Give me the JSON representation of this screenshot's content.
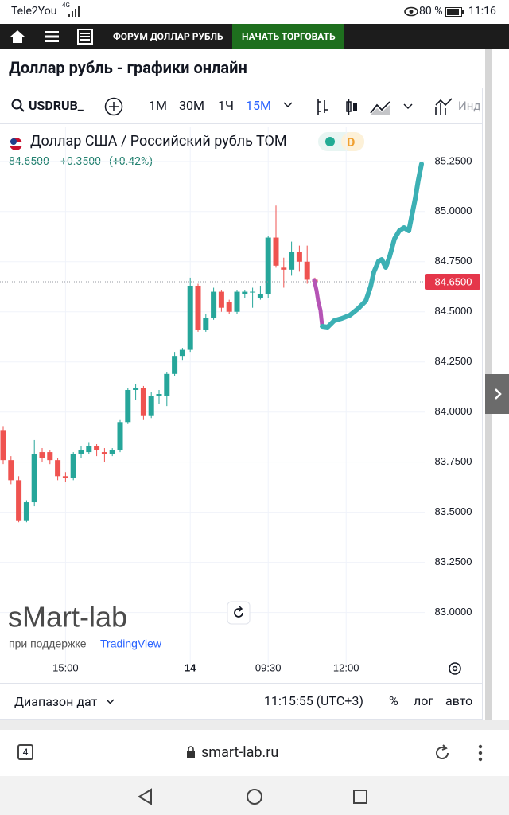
{
  "status_bar": {
    "carrier": "Tele2You",
    "signal": "4G",
    "battery": "80 %",
    "time": "11:16"
  },
  "nav": {
    "forum": "ФОРУМ ДОЛЛАР РУБЛЬ",
    "trade": "НАЧАТЬ ТОРГОВАТЬ"
  },
  "page_title": "Доллар рубль - графики онлайн",
  "toolbar": {
    "symbol": "USDRUB_",
    "intervals": [
      "1М",
      "30М",
      "1Ч",
      "15М"
    ],
    "indicators": "Инд"
  },
  "legend": {
    "instrument": "Доллар США / Российский рубль ТОМ",
    "period": "D",
    "change": "+0.3500",
    "change_pct": "(+0.42%)"
  },
  "branding": {
    "watermark": "sMart-lab",
    "powered_by": "при поддержке",
    "brand": "TradingView"
  },
  "bottom_bar": {
    "date_range": "Диапазон дат",
    "clock": "11:15:55 (UTC+3)",
    "options": [
      "%",
      "лог",
      "авто"
    ]
  },
  "browser": {
    "tabs": "4",
    "url": "smart-lab.ru"
  },
  "chart_data": {
    "type": "candlestick",
    "categories": [
      null,
      null,
      null,
      null,
      null,
      null,
      null,
      null,
      "15:00",
      null,
      null,
      null,
      null,
      null,
      null,
      null,
      null,
      null,
      null,
      null,
      null,
      null,
      null,
      null,
      "14",
      null,
      null,
      null,
      null,
      null,
      null,
      null,
      null,
      null,
      "09:30",
      null,
      null,
      null,
      null,
      null,
      null,
      null,
      null,
      null,
      "12:00"
    ],
    "open": [
      83.91,
      83.76,
      83.66,
      83.46,
      83.55,
      83.8,
      83.8,
      83.76,
      83.68,
      83.67,
      83.79,
      83.8,
      83.83,
      83.8,
      83.79,
      83.81,
      83.95,
      84.11,
      84.12,
      83.98,
      84.08,
      84.08,
      84.19,
      84.28,
      84.31,
      84.63,
      84.41,
      84.47,
      84.6,
      84.55,
      84.5,
      84.59,
      84.6,
      84.57,
      84.59,
      84.87,
      84.72,
      84.71,
      84.8,
      84.75,
      84.66,
      null,
      null,
      null,
      null
    ],
    "high": [
      83.93,
      83.78,
      83.68,
      83.56,
      83.86,
      83.82,
      83.81,
      83.77,
      83.7,
      83.8,
      83.83,
      83.85,
      83.84,
      83.82,
      83.82,
      83.96,
      84.12,
      84.14,
      84.13,
      84.1,
      84.11,
      84.2,
      84.3,
      84.32,
      84.67,
      84.64,
      84.49,
      84.62,
      84.61,
      84.56,
      84.61,
      84.61,
      84.62,
      84.63,
      84.88,
      85.03,
      84.77,
      84.85,
      84.83,
      84.83,
      84.67,
      null,
      null,
      null,
      null
    ],
    "low": [
      83.74,
      83.64,
      83.45,
      83.45,
      83.53,
      83.75,
      83.74,
      83.66,
      83.65,
      83.66,
      83.77,
      83.79,
      83.78,
      83.75,
      83.78,
      83.8,
      83.94,
      84.06,
      83.96,
      83.97,
      84.04,
      84.03,
      84.18,
      84.26,
      84.3,
      84.4,
      84.4,
      84.46,
      84.5,
      84.49,
      84.49,
      84.57,
      84.52,
      84.56,
      84.57,
      84.72,
      84.62,
      84.68,
      84.7,
      84.64,
      84.64,
      null,
      null,
      null,
      null
    ],
    "close": [
      83.76,
      83.66,
      83.46,
      83.55,
      83.79,
      83.77,
      83.76,
      83.68,
      83.67,
      83.79,
      83.81,
      83.83,
      83.81,
      83.79,
      83.81,
      83.95,
      84.11,
      84.12,
      83.98,
      84.08,
      84.09,
      84.19,
      84.28,
      84.31,
      84.63,
      84.41,
      84.47,
      84.6,
      84.52,
      84.5,
      84.6,
      84.6,
      84.6,
      84.59,
      84.87,
      84.73,
      84.71,
      84.8,
      84.75,
      84.66,
      84.65,
      null,
      null,
      null,
      null
    ],
    "up_color": "#26a69a",
    "down_color": "#ef5350",
    "ylim": [
      82.78,
      85.42
    ],
    "yticks": [
      {
        "value": 83,
        "label": "83.0000"
      },
      {
        "value": 83.25,
        "label": "83.2500"
      },
      {
        "value": 83.5,
        "label": "83.5000"
      },
      {
        "value": 83.75,
        "label": "83.7500"
      },
      {
        "value": 84,
        "label": "84.0000"
      },
      {
        "value": 84.25,
        "label": "84.2500"
      },
      {
        "value": 84.5,
        "label": "84.5000"
      },
      {
        "value": 84.75,
        "label": "84.7500"
      },
      {
        "value": 85,
        "label": "85.0000"
      },
      {
        "value": 85.25,
        "label": "85.2500"
      }
    ],
    "grid": true,
    "last_price": {
      "value": 84.65,
      "label": "84.6500",
      "color": "#e5364a"
    }
  }
}
